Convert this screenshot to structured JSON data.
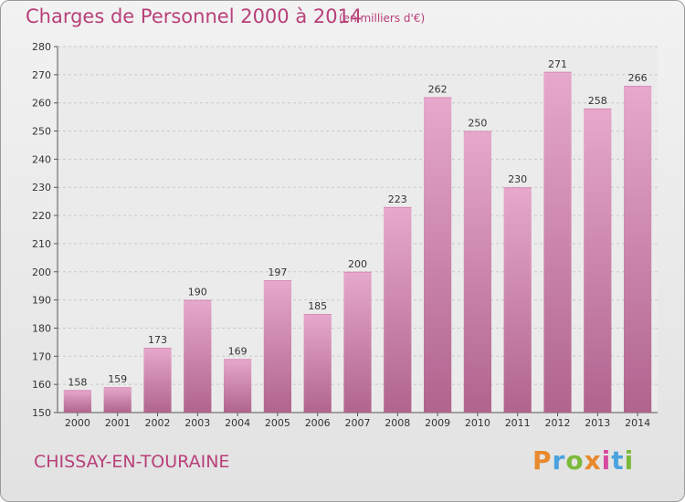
{
  "header": {
    "title": "Charges de Personnel 2000 à 2014",
    "subtitle": "(en milliers d'€)"
  },
  "footer": {
    "commune": "CHISSAY-EN-TOURAINE",
    "brand": "Proxiti"
  },
  "colors": {
    "title": "#b8407a",
    "bar_top": "#e6a8cc",
    "bar_bottom": "#b0648e",
    "brand_letters": [
      "#e8892c",
      "#4aa3df",
      "#7bb93a",
      "#e8892c",
      "#d64aa0",
      "#4aa3df",
      "#7bb93a"
    ]
  },
  "chart_data": {
    "type": "bar",
    "categories": [
      "2000",
      "2001",
      "2002",
      "2003",
      "2004",
      "2005",
      "2006",
      "2007",
      "2008",
      "2009",
      "2010",
      "2011",
      "2012",
      "2013",
      "2014"
    ],
    "values": [
      158,
      159,
      173,
      190,
      169,
      197,
      185,
      200,
      223,
      262,
      250,
      230,
      271,
      258,
      266
    ],
    "ylim": [
      150,
      280
    ],
    "yticks": [
      150,
      160,
      170,
      180,
      190,
      200,
      210,
      220,
      230,
      240,
      250,
      260,
      270,
      280
    ],
    "grid": true,
    "xlabel": "",
    "ylabel": ""
  }
}
